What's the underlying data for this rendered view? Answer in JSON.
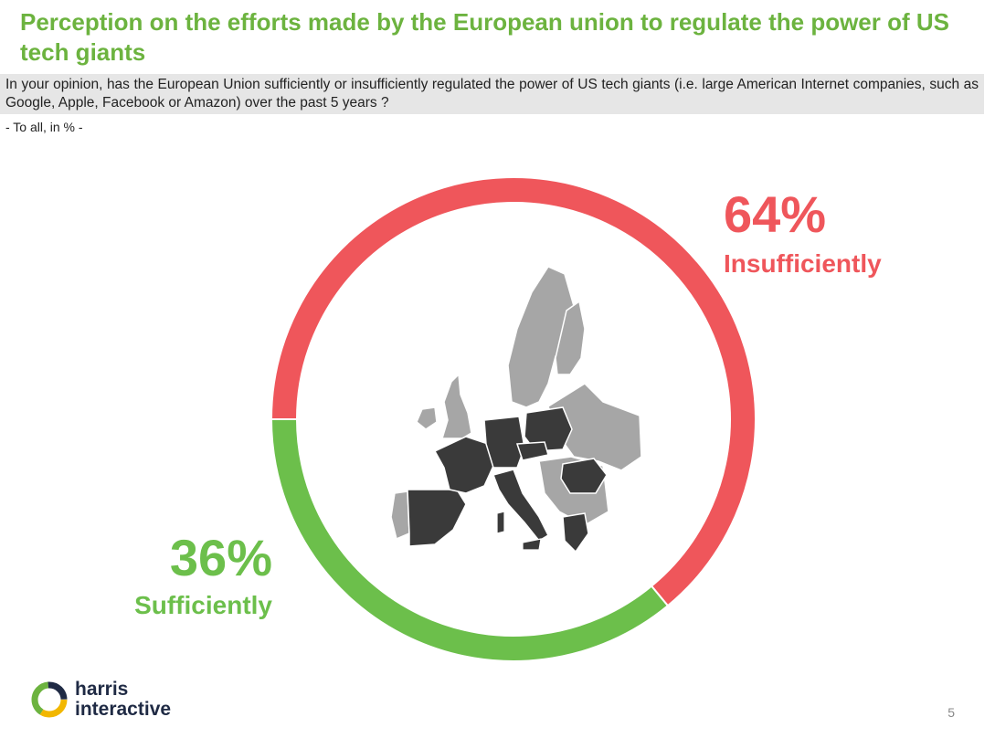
{
  "title": "Perception on the efforts made by the European union to regulate the power of US tech giants",
  "question": "In your opinion, has the European Union sufficiently or insufficiently regulated the power of US tech giants (i.e. large American Internet companies, such as Google, Apple, Facebook or Amazon) over the past 5 years ?",
  "base": "- To all, in % -",
  "chart_data": {
    "type": "pie",
    "categories": [
      "Insufficiently",
      "Sufficiently"
    ],
    "values": [
      64,
      36
    ],
    "value_labels": [
      "64%",
      "36%"
    ],
    "colors": [
      "#ef565b",
      "#6cbf4b"
    ]
  },
  "logo": {
    "line1": "harris",
    "line2": "interactive"
  },
  "page_number": "5"
}
